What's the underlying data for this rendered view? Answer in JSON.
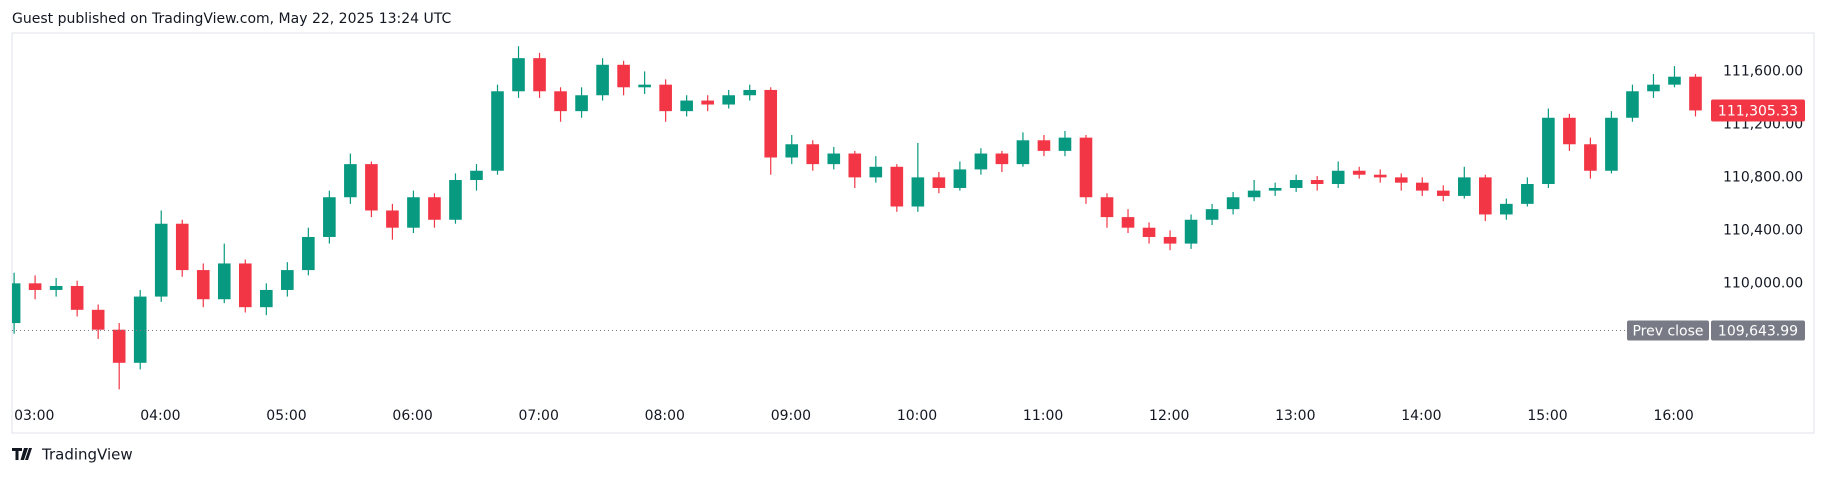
{
  "chart_data": {
    "type": "candlestick",
    "title": "Guest published on TradingView.com, May 22, 2025 13:24 UTC",
    "brand": "TradingView",
    "x": [
      180,
      190,
      200,
      210,
      220,
      230,
      240,
      250,
      260,
      270,
      280,
      290,
      300,
      310,
      320,
      330,
      340,
      350,
      360,
      370,
      380,
      390,
      400,
      410,
      420,
      430,
      440,
      450,
      460,
      470,
      480,
      490,
      500,
      510,
      520,
      530,
      540,
      550,
      560,
      570,
      580,
      590,
      600,
      610,
      620,
      630,
      640,
      650,
      660,
      670,
      680,
      690,
      700,
      710,
      720,
      730,
      740,
      750,
      760,
      770,
      780,
      790,
      800,
      810,
      820,
      830,
      840,
      850,
      860,
      870,
      880,
      890,
      900,
      910,
      920,
      930,
      940,
      950,
      960,
      970,
      980
    ],
    "open": [
      109700,
      110000,
      109950,
      109980,
      109800,
      109650,
      109400,
      109900,
      110450,
      110100,
      109880,
      110150,
      109820,
      109950,
      110100,
      110350,
      110650,
      110900,
      110550,
      110420,
      110650,
      110480,
      110780,
      110850,
      111450,
      111700,
      111450,
      111300,
      111420,
      111650,
      111480,
      111500,
      111300,
      111380,
      111350,
      111420,
      111460,
      110950,
      111050,
      110900,
      110980,
      110800,
      110880,
      110580,
      110800,
      110720,
      110860,
      110980,
      110900,
      111080,
      111000,
      111100,
      110650,
      110500,
      110420,
      110350,
      110300,
      110480,
      110560,
      110650,
      110700,
      110720,
      110780,
      110750,
      110850,
      110820,
      110800,
      110760,
      110700,
      110660,
      110800,
      110520,
      110600,
      110750,
      111250,
      111050,
      110850,
      111250,
      111450,
      111500,
      111560
    ],
    "high": [
      110080,
      110060,
      110040,
      110020,
      109840,
      109700,
      109950,
      110550,
      110480,
      110150,
      110300,
      110180,
      110000,
      110160,
      110420,
      110700,
      110980,
      110920,
      110600,
      110700,
      110680,
      110830,
      110900,
      111500,
      111790,
      111740,
      111480,
      111480,
      111700,
      111680,
      111600,
      111540,
      111420,
      111420,
      111460,
      111500,
      111480,
      111120,
      111080,
      111030,
      111000,
      110960,
      110900,
      111060,
      110840,
      110920,
      111020,
      111000,
      111140,
      111120,
      111150,
      111120,
      110680,
      110560,
      110460,
      110400,
      110520,
      110600,
      110690,
      110780,
      110760,
      110820,
      110810,
      110920,
      110880,
      110860,
      110830,
      110800,
      110740,
      110880,
      110820,
      110640,
      110800,
      111320,
      111280,
      111100,
      111300,
      111500,
      111580,
      111640,
      111580
    ],
    "low": [
      109620,
      109880,
      109900,
      109750,
      109580,
      109200,
      109350,
      109860,
      110050,
      109820,
      109850,
      109780,
      109760,
      109900,
      110060,
      110300,
      110600,
      110500,
      110330,
      110380,
      110420,
      110450,
      110700,
      110820,
      111400,
      111400,
      111220,
      111250,
      111380,
      111420,
      111430,
      111220,
      111260,
      111300,
      111320,
      111380,
      110820,
      110900,
      110850,
      110860,
      110720,
      110760,
      110540,
      110540,
      110680,
      110700,
      110820,
      110840,
      110880,
      110960,
      110960,
      110600,
      110420,
      110380,
      110300,
      110250,
      110260,
      110440,
      110520,
      110620,
      110660,
      110690,
      110700,
      110720,
      110790,
      110760,
      110700,
      110660,
      110620,
      110640,
      110470,
      110480,
      110580,
      110720,
      111000,
      110790,
      110830,
      111220,
      111400,
      111480,
      111260
    ],
    "close": [
      110000,
      109950,
      109980,
      109800,
      109650,
      109400,
      109900,
      110450,
      110100,
      109880,
      110150,
      109820,
      109950,
      110100,
      110350,
      110650,
      110900,
      110550,
      110420,
      110650,
      110480,
      110780,
      110850,
      111450,
      111700,
      111450,
      111300,
      111420,
      111650,
      111480,
      111500,
      111300,
      111380,
      111350,
      111420,
      111460,
      110950,
      111050,
      110900,
      110980,
      110800,
      110880,
      110580,
      110800,
      110720,
      110860,
      110980,
      110900,
      111080,
      111000,
      111100,
      110650,
      110500,
      110420,
      110350,
      110300,
      110480,
      110560,
      110650,
      110700,
      110720,
      110780,
      110750,
      110850,
      110820,
      110800,
      110760,
      110700,
      110660,
      110800,
      110520,
      110600,
      110750,
      111250,
      111050,
      110850,
      111250,
      111450,
      111500,
      111560,
      111305.33
    ],
    "up_color": "#089981",
    "down_color": "#f23645",
    "xlim": [
      179,
      985
    ],
    "ylim": [
      108870,
      111890
    ],
    "xticks": [
      {
        "value": 180,
        "label": "03:00"
      },
      {
        "value": 240,
        "label": "04:00"
      },
      {
        "value": 300,
        "label": "05:00"
      },
      {
        "value": 360,
        "label": "06:00"
      },
      {
        "value": 420,
        "label": "07:00"
      },
      {
        "value": 480,
        "label": "08:00"
      },
      {
        "value": 540,
        "label": "09:00"
      },
      {
        "value": 600,
        "label": "10:00"
      },
      {
        "value": 660,
        "label": "11:00"
      },
      {
        "value": 720,
        "label": "12:00"
      },
      {
        "value": 780,
        "label": "13:00"
      },
      {
        "value": 840,
        "label": "14:00"
      },
      {
        "value": 900,
        "label": "15:00"
      },
      {
        "value": 960,
        "label": "16:00"
      }
    ],
    "yticks": [
      {
        "value": 110000,
        "label": "110,000.00"
      },
      {
        "value": 110400,
        "label": "110,400.00"
      },
      {
        "value": 110800,
        "label": "110,800.00"
      },
      {
        "value": 111200,
        "label": "111,200.00"
      },
      {
        "value": 111600,
        "label": "111,600.00"
      }
    ],
    "last_price": {
      "value": 111305.33,
      "label": "111,305.33",
      "color": "#f23645"
    },
    "prev_close": {
      "name": "Prev close",
      "value": 109643.99,
      "label": "109,643.99",
      "color": "#787b86"
    }
  }
}
